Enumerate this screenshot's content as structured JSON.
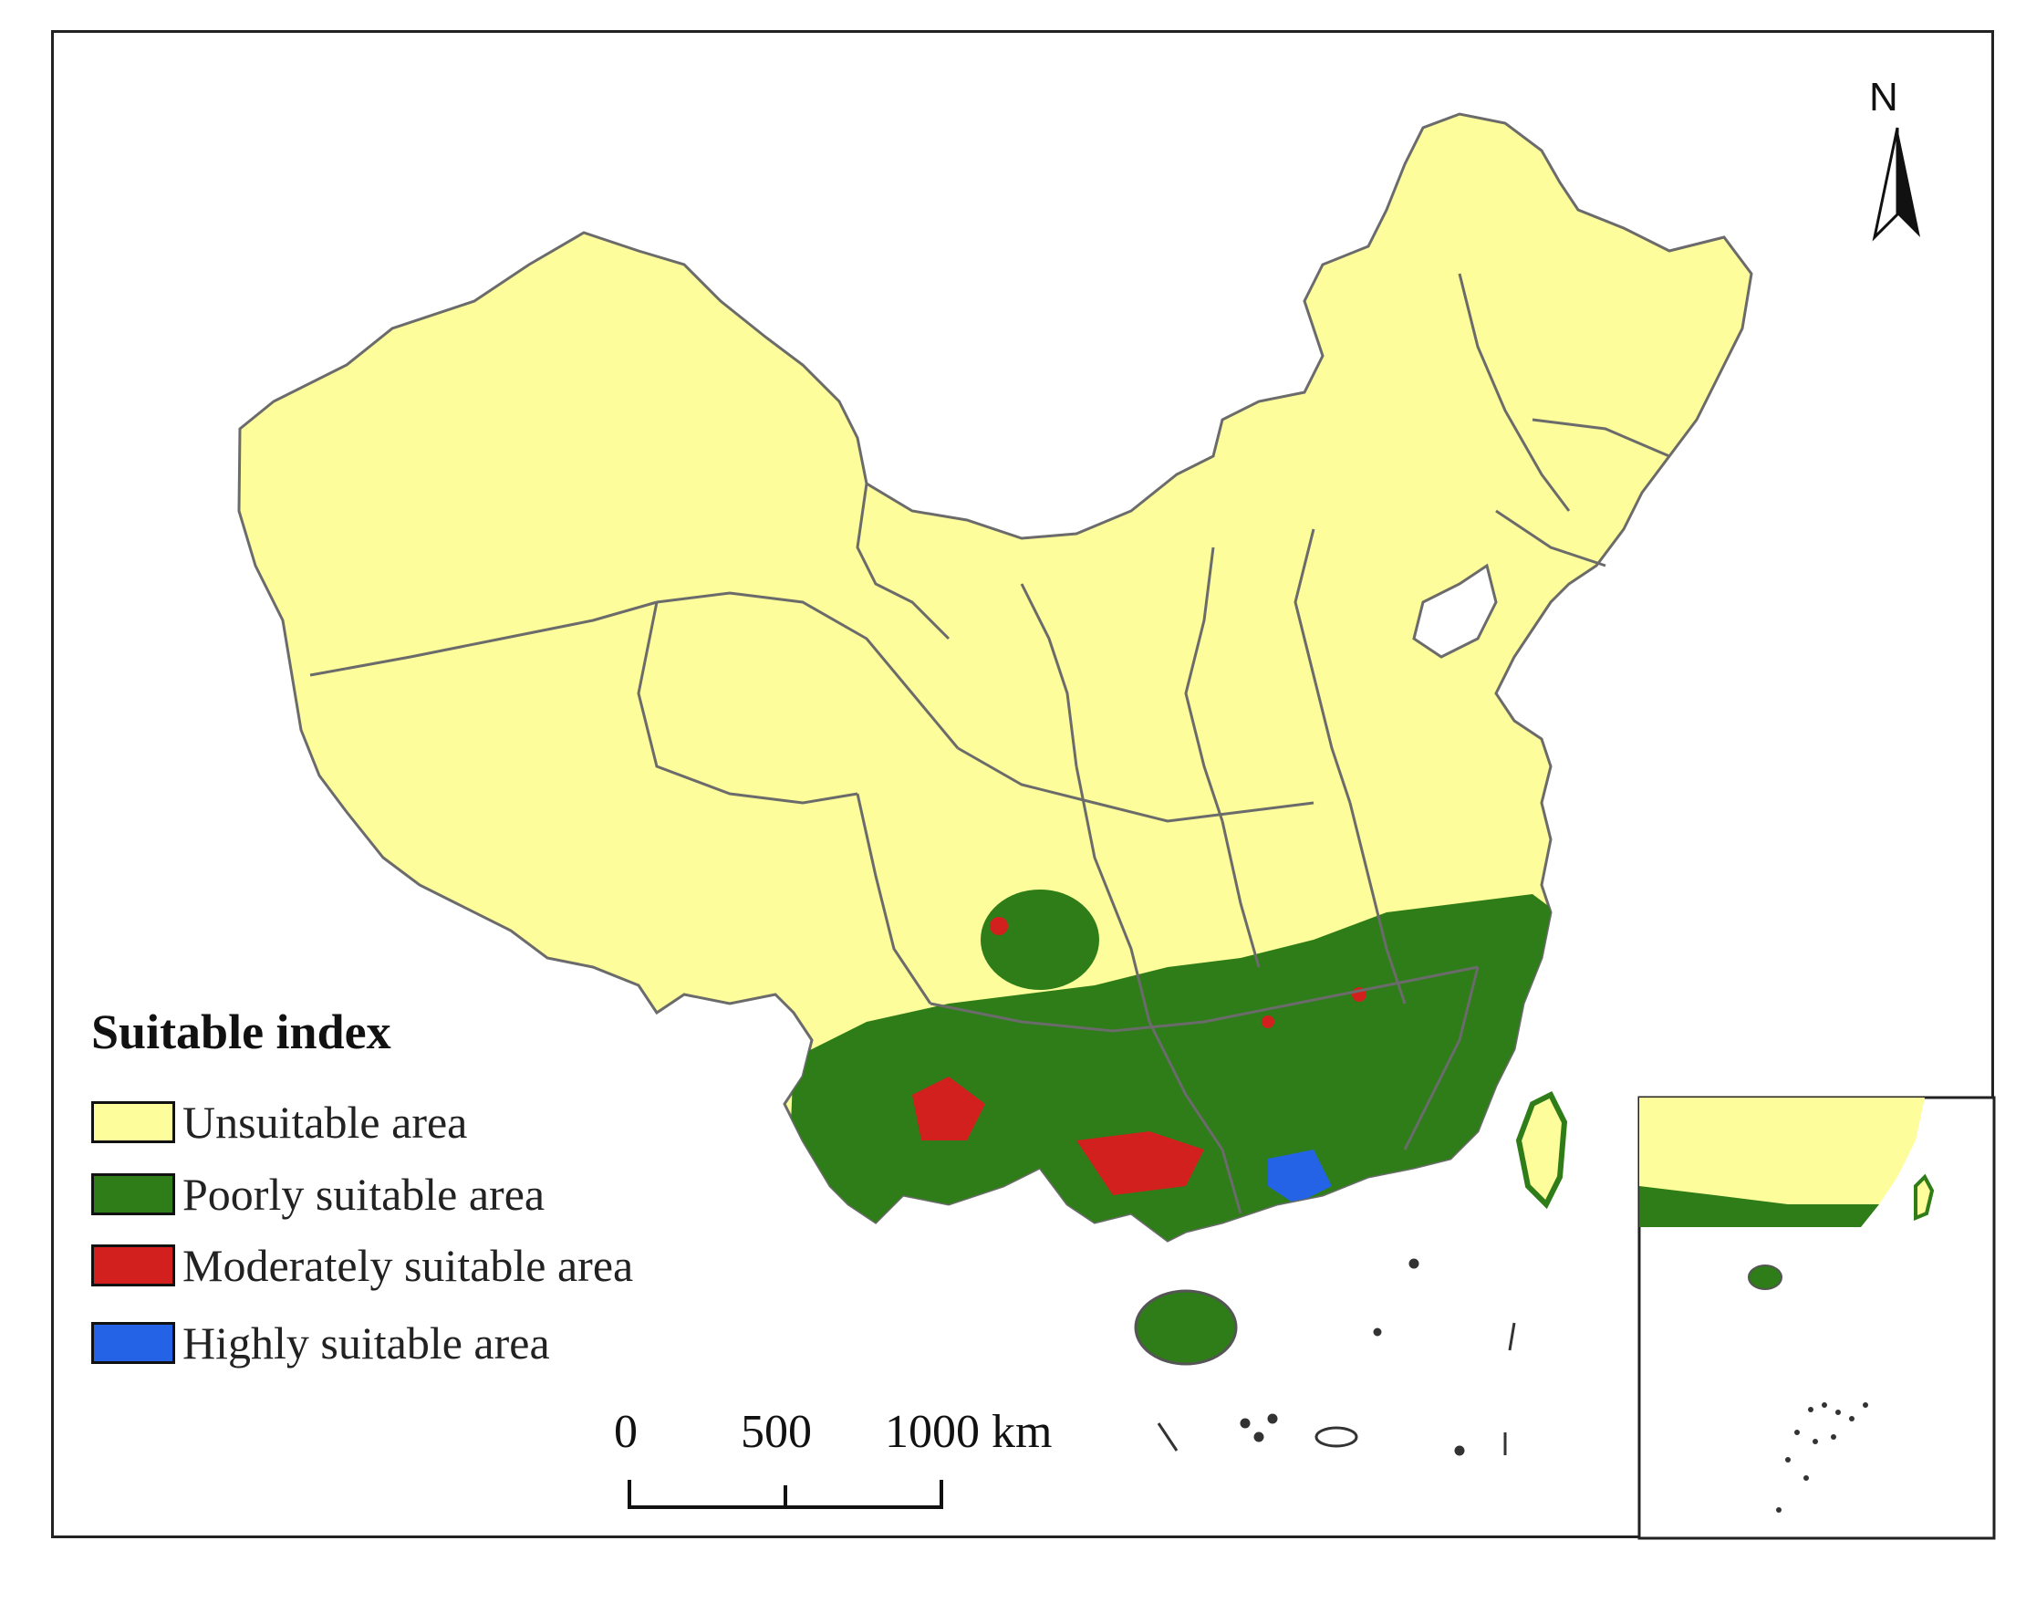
{
  "colors": {
    "unsuitable": "#FDFD9B",
    "poorly": "#2E7D18",
    "moderately": "#D2201F",
    "highly": "#2463E6",
    "border": "#6B6B6B"
  },
  "legend": {
    "title": "Suitable index",
    "items": [
      {
        "label": "Unsuitable area",
        "color": "#FDFD9B"
      },
      {
        "label": "Poorly suitable area",
        "color": "#2E7D18"
      },
      {
        "label": "Moderately suitable area",
        "color": "#D2201F"
      },
      {
        "label": "Highly suitable area",
        "color": "#2463E6"
      }
    ]
  },
  "scale_bar": {
    "ticks": [
      "0",
      "500",
      "1000 km"
    ]
  },
  "north_arrow": {
    "label": "N",
    "icon": "north-arrow-icon"
  },
  "inset": {
    "icon": "south-china-sea-inset"
  }
}
